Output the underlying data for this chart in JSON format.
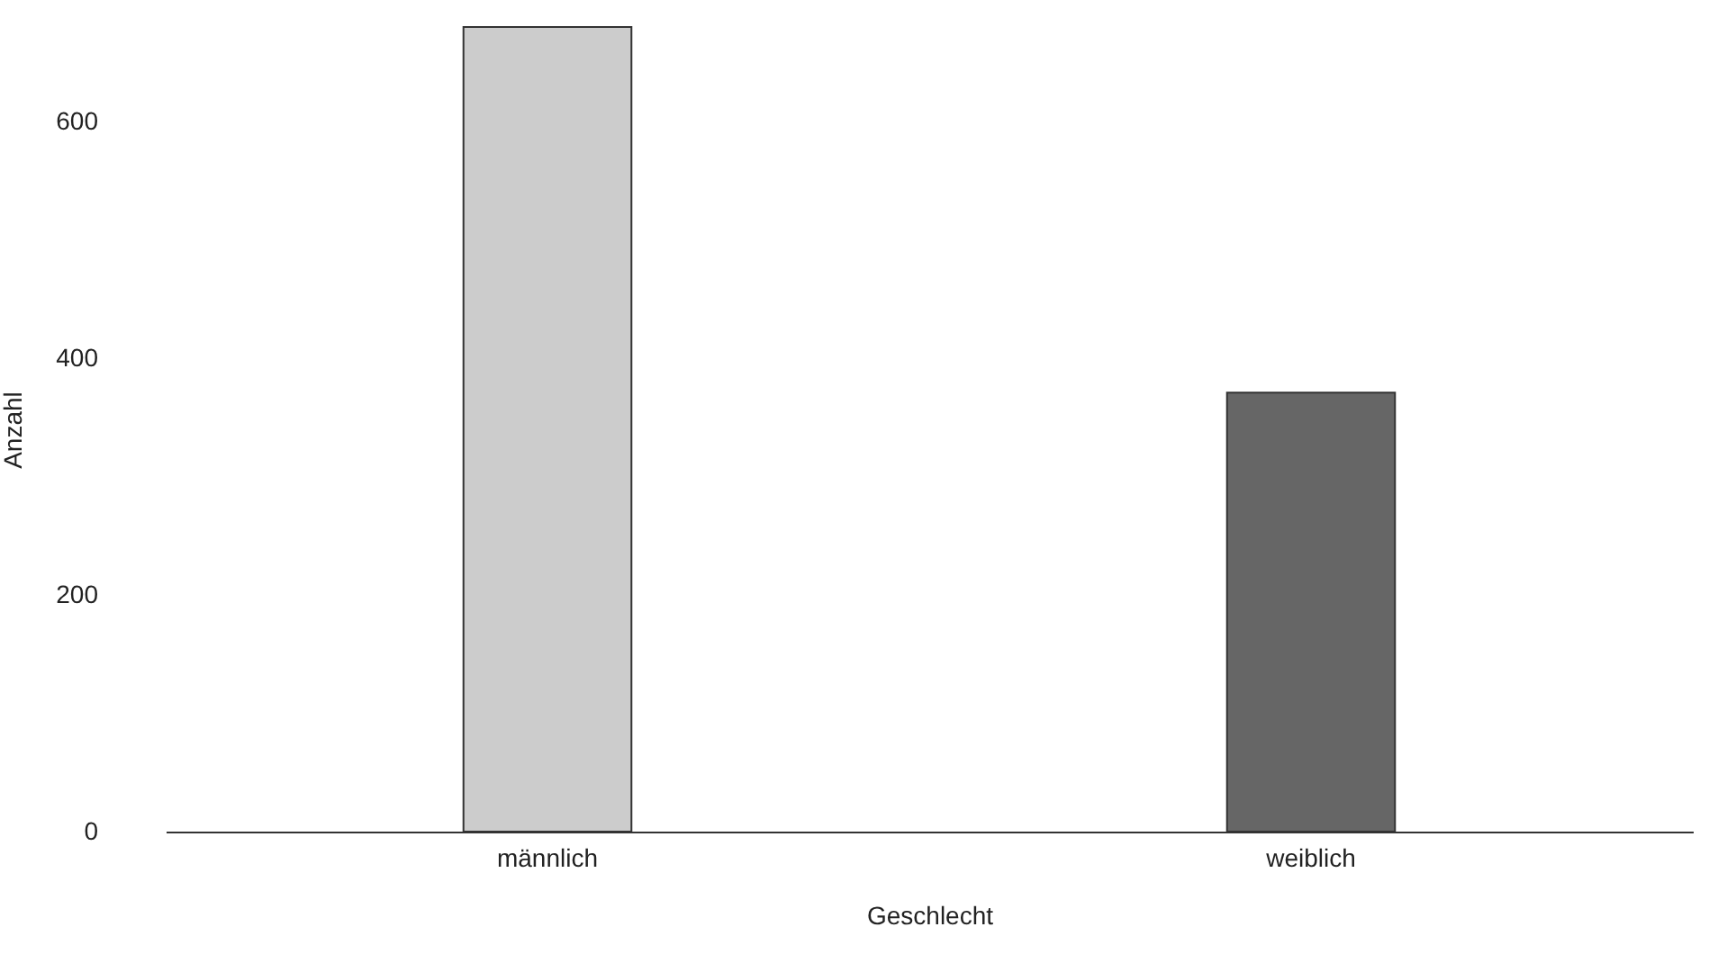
{
  "chart_data": {
    "type": "bar",
    "xlabel": "Geschlecht",
    "ylabel": "Anzahl",
    "categories": [
      "männlich",
      "weiblich"
    ],
    "values": [
      680,
      371
    ],
    "colors": [
      "#cccccc",
      "#666666"
    ],
    "ylim": [
      0,
      680
    ],
    "yticks": [
      0,
      200,
      400,
      600
    ],
    "grid": false,
    "legend": false
  }
}
